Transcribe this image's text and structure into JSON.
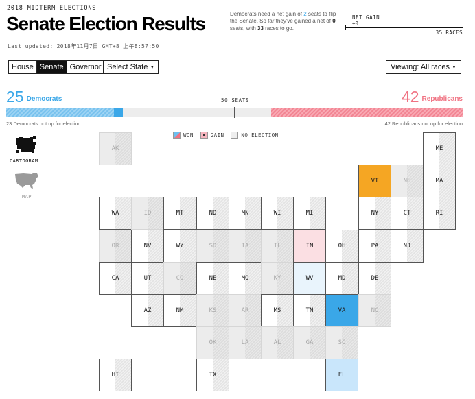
{
  "header": {
    "kicker": "2018 MIDTERM ELECTIONS",
    "title": "Senate Election Results",
    "last_updated": "Last updated: 2018年11月7日 GMT+8 上午8:57:50"
  },
  "blurb": {
    "part1": "Democrats need a net gain of ",
    "needed": "2",
    "part2": " seats to flip the Senate. So far they've gained a net of ",
    "gained": "0",
    "part3": " seats, with ",
    "remaining": "33",
    "part4": " races to go."
  },
  "net_gain": {
    "label": "NET GAIN",
    "value": "+0",
    "races": "35 RACES"
  },
  "controls": {
    "chamber_tabs": [
      {
        "label": "House",
        "active": false
      },
      {
        "label": "Senate",
        "active": true
      },
      {
        "label": "Governor",
        "active": false
      }
    ],
    "select_state": "Select State",
    "viewing": "Viewing: All races"
  },
  "tally": {
    "dem_count": "25",
    "dem_label": "Democrats",
    "rep_count": "42",
    "rep_label": "Republicans",
    "seats_label": "50 SEATS",
    "dem_not_up": "23 Democrats not up for election",
    "rep_not_up": "42 Republicans not up for election",
    "dem_share": 0.236,
    "dem_won_share": 0.02,
    "rep_share": 0.42
  },
  "colors": {
    "dem": "#3aa7e8",
    "dem_light": "#c9e6fb",
    "dem_faint": "#e9f4fc",
    "rep": "#f07282",
    "rep_light": "#fbdfe3",
    "ind": "#f5a623"
  },
  "legend": {
    "won": "WON",
    "gain": "GAIN",
    "none": "NO ELECTION"
  },
  "views": {
    "cartogram": "CARTOGRAM",
    "map": "MAP"
  },
  "states": [
    {
      "abbr": "AK",
      "col": 0,
      "row": 0,
      "status": "none"
    },
    {
      "abbr": "ME",
      "col": 10,
      "row": 0,
      "status": "white"
    },
    {
      "abbr": "VT",
      "col": 8,
      "row": 1,
      "status": "ind"
    },
    {
      "abbr": "NH",
      "col": 9,
      "row": 1,
      "status": "none"
    },
    {
      "abbr": "MA",
      "col": 10,
      "row": 1,
      "status": "white"
    },
    {
      "abbr": "WA",
      "col": 0,
      "row": 2,
      "status": "white"
    },
    {
      "abbr": "ID",
      "col": 1,
      "row": 2,
      "status": "none"
    },
    {
      "abbr": "MT",
      "col": 2,
      "row": 2,
      "status": "white"
    },
    {
      "abbr": "ND",
      "col": 3,
      "row": 2,
      "status": "white"
    },
    {
      "abbr": "MN",
      "col": 4,
      "row": 2,
      "status": "white"
    },
    {
      "abbr": "WI",
      "col": 5,
      "row": 2,
      "status": "white"
    },
    {
      "abbr": "MI",
      "col": 6,
      "row": 2,
      "status": "white"
    },
    {
      "abbr": "NY",
      "col": 8,
      "row": 2,
      "status": "white"
    },
    {
      "abbr": "CT",
      "col": 9,
      "row": 2,
      "status": "white"
    },
    {
      "abbr": "RI",
      "col": 10,
      "row": 2,
      "status": "white"
    },
    {
      "abbr": "OR",
      "col": 0,
      "row": 3,
      "status": "none"
    },
    {
      "abbr": "NV",
      "col": 1,
      "row": 3,
      "status": "white"
    },
    {
      "abbr": "WY",
      "col": 2,
      "row": 3,
      "status": "white"
    },
    {
      "abbr": "SD",
      "col": 3,
      "row": 3,
      "status": "none"
    },
    {
      "abbr": "IA",
      "col": 4,
      "row": 3,
      "status": "none"
    },
    {
      "abbr": "IL",
      "col": 5,
      "row": 3,
      "status": "none"
    },
    {
      "abbr": "IN",
      "col": 6,
      "row": 3,
      "status": "rep_light"
    },
    {
      "abbr": "OH",
      "col": 7,
      "row": 3,
      "status": "white"
    },
    {
      "abbr": "PA",
      "col": 8,
      "row": 3,
      "status": "white"
    },
    {
      "abbr": "NJ",
      "col": 9,
      "row": 3,
      "status": "white"
    },
    {
      "abbr": "CA",
      "col": 0,
      "row": 4,
      "status": "white"
    },
    {
      "abbr": "UT",
      "col": 1,
      "row": 4,
      "status": "white"
    },
    {
      "abbr": "CO",
      "col": 2,
      "row": 4,
      "status": "none"
    },
    {
      "abbr": "NE",
      "col": 3,
      "row": 4,
      "status": "white"
    },
    {
      "abbr": "MO",
      "col": 4,
      "row": 4,
      "status": "white"
    },
    {
      "abbr": "KY",
      "col": 5,
      "row": 4,
      "status": "none"
    },
    {
      "abbr": "WV",
      "col": 6,
      "row": 4,
      "status": "dem_faint"
    },
    {
      "abbr": "MD",
      "col": 7,
      "row": 4,
      "status": "white"
    },
    {
      "abbr": "DE",
      "col": 8,
      "row": 4,
      "status": "white"
    },
    {
      "abbr": "AZ",
      "col": 1,
      "row": 5,
      "status": "white"
    },
    {
      "abbr": "NM",
      "col": 2,
      "row": 5,
      "status": "white"
    },
    {
      "abbr": "KS",
      "col": 3,
      "row": 5,
      "status": "none"
    },
    {
      "abbr": "AR",
      "col": 4,
      "row": 5,
      "status": "none"
    },
    {
      "abbr": "MS",
      "col": 5,
      "row": 5,
      "status": "white"
    },
    {
      "abbr": "TN",
      "col": 6,
      "row": 5,
      "status": "white"
    },
    {
      "abbr": "VA",
      "col": 7,
      "row": 5,
      "status": "dem"
    },
    {
      "abbr": "NC",
      "col": 8,
      "row": 5,
      "status": "none"
    },
    {
      "abbr": "OK",
      "col": 3,
      "row": 6,
      "status": "none"
    },
    {
      "abbr": "LA",
      "col": 4,
      "row": 6,
      "status": "none"
    },
    {
      "abbr": "AL",
      "col": 5,
      "row": 6,
      "status": "none"
    },
    {
      "abbr": "GA",
      "col": 6,
      "row": 6,
      "status": "none"
    },
    {
      "abbr": "SC",
      "col": 7,
      "row": 6,
      "status": "none"
    },
    {
      "abbr": "HI",
      "col": 0,
      "row": 7,
      "status": "white"
    },
    {
      "abbr": "TX",
      "col": 3,
      "row": 7,
      "status": "white"
    },
    {
      "abbr": "FL",
      "col": 7,
      "row": 7,
      "status": "dem_light"
    }
  ]
}
